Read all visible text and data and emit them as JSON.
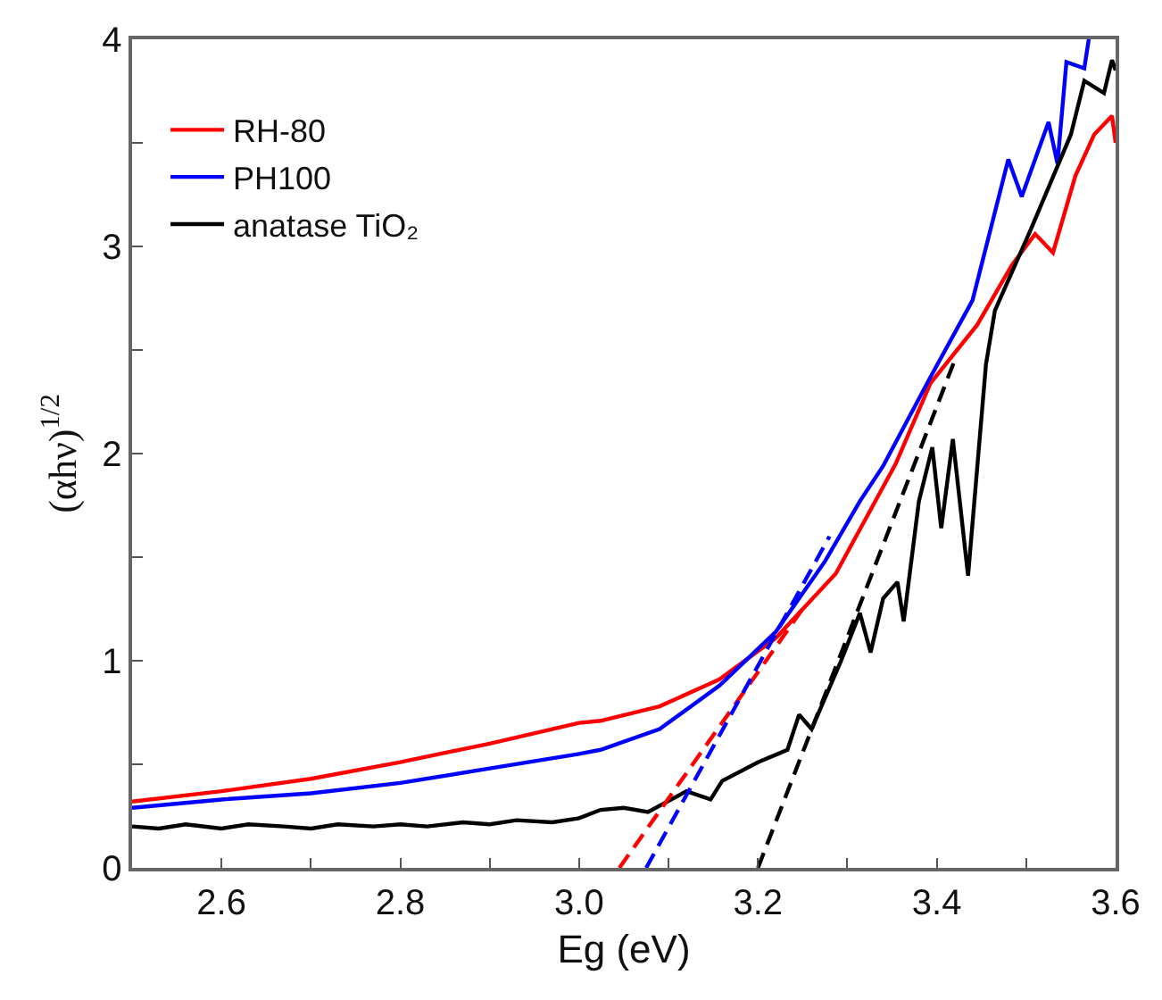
{
  "chart_data": {
    "type": "line",
    "xlabel": "Eg (eV)",
    "ylabel": "(αhν)$^{1/2}$",
    "xlim": [
      2.5,
      3.6
    ],
    "ylim": [
      0,
      4
    ],
    "xticks": [
      {
        "value": 2.6,
        "label": "2.6"
      },
      {
        "value": 2.7,
        "label": null
      },
      {
        "value": 2.8,
        "label": "2.8"
      },
      {
        "value": 2.9,
        "label": null
      },
      {
        "value": 3.0,
        "label": "3.0"
      },
      {
        "value": 3.1,
        "label": null
      },
      {
        "value": 3.2,
        "label": "3.2"
      },
      {
        "value": 3.3,
        "label": null
      },
      {
        "value": 3.4,
        "label": "3.4"
      },
      {
        "value": 3.5,
        "label": null
      },
      {
        "value": 3.6,
        "label": "3.6"
      }
    ],
    "yticks": [
      0,
      {
        "value": 0.5,
        "label": null
      },
      1,
      {
        "value": 1.5,
        "label": null
      },
      2,
      {
        "value": 2.5,
        "label": null
      },
      3,
      {
        "value": 3.5,
        "label": null
      },
      4
    ],
    "grid": false,
    "legend": "top left",
    "marker": "none",
    "line_style": "solid",
    "series": [
      {
        "name": "RH-80",
        "color": "#ff0000",
        "x": [
          2.5,
          2.6,
          2.7,
          2.8,
          2.9,
          3.0,
          3.024,
          3.09,
          3.157,
          3.22,
          3.287,
          3.354,
          3.393,
          3.445,
          3.484,
          3.51,
          3.53,
          3.555,
          3.576,
          3.596,
          3.6
        ],
        "values": [
          0.32,
          0.37,
          0.43,
          0.51,
          0.6,
          0.7,
          0.71,
          0.78,
          0.91,
          1.11,
          1.42,
          1.95,
          2.34,
          2.62,
          2.91,
          3.06,
          2.97,
          3.34,
          3.54,
          3.63,
          3.5
        ]
      },
      {
        "name": "PH100",
        "color": "#0000ff",
        "x": [
          2.5,
          2.6,
          2.7,
          2.8,
          2.9,
          3.0,
          3.024,
          3.09,
          3.157,
          3.22,
          3.275,
          3.314,
          3.34,
          3.393,
          3.44,
          3.48,
          3.495,
          3.525,
          3.535,
          3.545,
          3.565,
          3.57
        ],
        "values": [
          0.29,
          0.33,
          0.36,
          0.41,
          0.48,
          0.55,
          0.57,
          0.67,
          0.88,
          1.14,
          1.48,
          1.77,
          1.94,
          2.37,
          2.74,
          3.42,
          3.24,
          3.6,
          3.4,
          3.89,
          3.86,
          4.0
        ]
      },
      {
        "name": "anatase TiO₂",
        "color": "#000000",
        "x": [
          2.5,
          2.53,
          2.56,
          2.6,
          2.63,
          2.67,
          2.7,
          2.73,
          2.77,
          2.8,
          2.83,
          2.87,
          2.9,
          2.93,
          2.97,
          3.0,
          3.024,
          3.05,
          3.077,
          3.12,
          3.147,
          3.16,
          3.2,
          3.233,
          3.246,
          3.26,
          3.293,
          3.314,
          3.326,
          3.34,
          3.356,
          3.363,
          3.38,
          3.395,
          3.405,
          3.418,
          3.435,
          3.455,
          3.465,
          3.505,
          3.55,
          3.565,
          3.587,
          3.596,
          3.6
        ],
        "values": [
          0.2,
          0.19,
          0.21,
          0.19,
          0.21,
          0.2,
          0.19,
          0.21,
          0.2,
          0.21,
          0.2,
          0.22,
          0.21,
          0.23,
          0.22,
          0.24,
          0.28,
          0.29,
          0.27,
          0.37,
          0.33,
          0.42,
          0.51,
          0.57,
          0.74,
          0.67,
          1.0,
          1.23,
          1.04,
          1.3,
          1.38,
          1.19,
          1.77,
          2.03,
          1.64,
          2.07,
          1.41,
          2.43,
          2.69,
          3.08,
          3.54,
          3.8,
          3.74,
          3.9,
          3.85
        ]
      },
      {
        "color": "#ff0000",
        "line_style": "dashed",
        "x": [
          3.045,
          3.25
        ],
        "values": [
          0,
          1.25
        ]
      },
      {
        "color": "#0000ff",
        "line_style": "dashed",
        "x": [
          3.075,
          3.28
        ],
        "values": [
          0,
          1.6
        ]
      },
      {
        "color": "#000000",
        "line_style": "dashed",
        "x": [
          3.2,
          3.42
        ],
        "values": [
          0,
          2.45
        ]
      }
    ]
  }
}
